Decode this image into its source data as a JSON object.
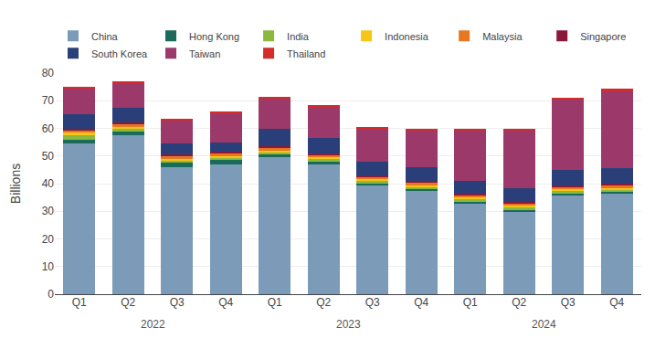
{
  "chart_data": {
    "type": "bar",
    "stacked": true,
    "categories": [
      "Q1",
      "Q2",
      "Q3",
      "Q4",
      "Q1",
      "Q2",
      "Q3",
      "Q4",
      "Q1",
      "Q2",
      "Q3",
      "Q4"
    ],
    "annotations": [
      "2022",
      "2023",
      "2024"
    ],
    "ylabel": "Billions",
    "series": [
      {
        "name": "China",
        "color": "#7B9BB8",
        "values": [
          54.5,
          57.5,
          46.0,
          47.0,
          49.5,
          47.0,
          39.5,
          37.5,
          33.0,
          30.0,
          36.0,
          36.5
        ]
      },
      {
        "name": "Hong Kong",
        "color": "#1A6B5A",
        "values": [
          1.5,
          1.5,
          1.5,
          1.5,
          1.0,
          1.0,
          0.5,
          0.5,
          0.5,
          0.5,
          0.5,
          0.5
        ]
      },
      {
        "name": "India",
        "color": "#8CB840",
        "values": [
          1.5,
          1.0,
          1.0,
          1.0,
          1.0,
          1.0,
          1.0,
          1.0,
          1.0,
          1.0,
          1.0,
          1.0
        ]
      },
      {
        "name": "Indonesia",
        "color": "#F5C518",
        "values": [
          1.0,
          0.5,
          0.5,
          0.5,
          0.5,
          0.5,
          0.5,
          0.5,
          0.5,
          0.5,
          0.5,
          0.5
        ]
      },
      {
        "name": "Malaysia",
        "color": "#E87722",
        "values": [
          1.0,
          1.0,
          1.0,
          1.0,
          1.0,
          1.0,
          1.0,
          1.0,
          1.0,
          1.0,
          1.0,
          1.0
        ]
      },
      {
        "name": "Singapore",
        "color": "#8B1A3A",
        "values": [
          0.5,
          0.5,
          0.5,
          0.5,
          0.5,
          0.5,
          0.5,
          0.5,
          0.5,
          0.5,
          0.5,
          0.5
        ]
      },
      {
        "name": "South Korea",
        "color": "#2A3F7A",
        "values": [
          5.0,
          5.5,
          4.0,
          3.5,
          6.5,
          5.5,
          5.0,
          5.0,
          4.5,
          5.0,
          5.5,
          5.5
        ]
      },
      {
        "name": "Taiwan",
        "color": "#9B3A6A",
        "values": [
          9.5,
          9.0,
          8.5,
          10.5,
          11.0,
          11.5,
          12.0,
          13.5,
          18.5,
          21.0,
          25.5,
          28.0
        ]
      },
      {
        "name": "Thailand",
        "color": "#D42B2B",
        "values": [
          0.5,
          0.5,
          0.5,
          0.5,
          0.5,
          0.5,
          0.5,
          0.5,
          0.5,
          0.5,
          0.5,
          1.0
        ]
      }
    ],
    "ylim": [
      0,
      80
    ],
    "yticks": [
      0,
      10,
      20,
      30,
      40,
      50,
      60,
      70,
      80
    ],
    "grid": true,
    "legend": "top"
  }
}
